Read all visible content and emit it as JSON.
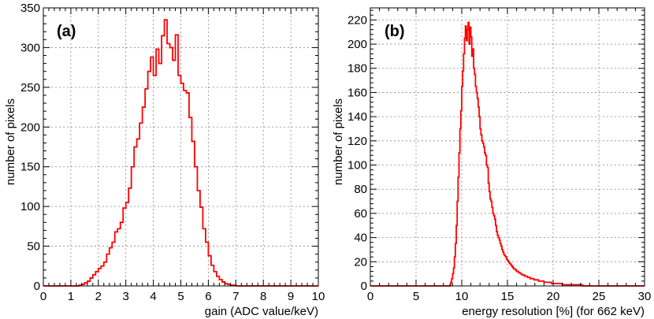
{
  "chart_data": [
    {
      "type": "histogram",
      "panel_label": "(a)",
      "xlabel": "gain (ADC value/keV)",
      "ylabel": "number of pixels",
      "xlim": [
        0,
        10
      ],
      "ylim": [
        0,
        350
      ],
      "grid": true,
      "color": "#ff0000",
      "xticks": [
        0,
        1,
        2,
        3,
        4,
        5,
        6,
        7,
        8,
        9,
        10
      ],
      "yticks": [
        0,
        50,
        100,
        150,
        200,
        250,
        300,
        350
      ],
      "bin_width": 0.1,
      "x_start": 0.0,
      "values": [
        0,
        0,
        0,
        0,
        0,
        0,
        0,
        0,
        0,
        0,
        0,
        0,
        0,
        1,
        2,
        4,
        6,
        10,
        14,
        18,
        22,
        25,
        30,
        40,
        48,
        55,
        68,
        72,
        80,
        98,
        105,
        123,
        150,
        175,
        185,
        205,
        225,
        248,
        270,
        288,
        265,
        298,
        280,
        315,
        335,
        305,
        300,
        284,
        316,
        265,
        255,
        246,
        243,
        212,
        182,
        150,
        120,
        99,
        72,
        55,
        38,
        26,
        18,
        12,
        8,
        5,
        3,
        2,
        1,
        1,
        0,
        0,
        0,
        0,
        0,
        0,
        0,
        0,
        0,
        0,
        0,
        0,
        0,
        0,
        0,
        0,
        0,
        0,
        0,
        0,
        0,
        0,
        0,
        0,
        0,
        0,
        0,
        0,
        0,
        0
      ]
    },
    {
      "type": "histogram",
      "panel_label": "(b)",
      "xlabel": "energy resolution [%] (for 662 keV)",
      "ylabel": "number of pixels",
      "xlim": [
        0,
        30
      ],
      "ylim": [
        0,
        230
      ],
      "grid": true,
      "color": "#ff0000",
      "xticks": [
        0,
        5,
        10,
        15,
        20,
        25,
        30
      ],
      "yticks": [
        0,
        20,
        40,
        60,
        80,
        100,
        120,
        140,
        160,
        180,
        200,
        220
      ],
      "bin_width": 0.1,
      "x_start": 8.6,
      "values": [
        0,
        1,
        3,
        6,
        10,
        15,
        24,
        35,
        50,
        70,
        90,
        110,
        130,
        145,
        165,
        178,
        192,
        205,
        215,
        203,
        212,
        218,
        200,
        214,
        206,
        190,
        196,
        180,
        175,
        165,
        160,
        155,
        148,
        140,
        130,
        125,
        120,
        118,
        115,
        110,
        108,
        100,
        98,
        85,
        78,
        72,
        70,
        65,
        60,
        58,
        55,
        50,
        45,
        42,
        40,
        38,
        35,
        33,
        30,
        28,
        26,
        25,
        24,
        22,
        21,
        20,
        19,
        18,
        17,
        16,
        15,
        14,
        14,
        13,
        12,
        12,
        11,
        11,
        10,
        10,
        9,
        9,
        9,
        8,
        8,
        8,
        7,
        7,
        7,
        6,
        6,
        6,
        6,
        5,
        5,
        5,
        5,
        5,
        4,
        4,
        4,
        4,
        4,
        4,
        3,
        3,
        3,
        3,
        3,
        3,
        3,
        3,
        2,
        2,
        2,
        2,
        2,
        2,
        2,
        2,
        2,
        2,
        2,
        2,
        1,
        1,
        1,
        1,
        1,
        1,
        1,
        1,
        1,
        1,
        1,
        1,
        1,
        1,
        1,
        1,
        1,
        1,
        1,
        1,
        1,
        1,
        0,
        0,
        0,
        0,
        0,
        0,
        0,
        0,
        0,
        0,
        0,
        0,
        0,
        0
      ]
    }
  ]
}
